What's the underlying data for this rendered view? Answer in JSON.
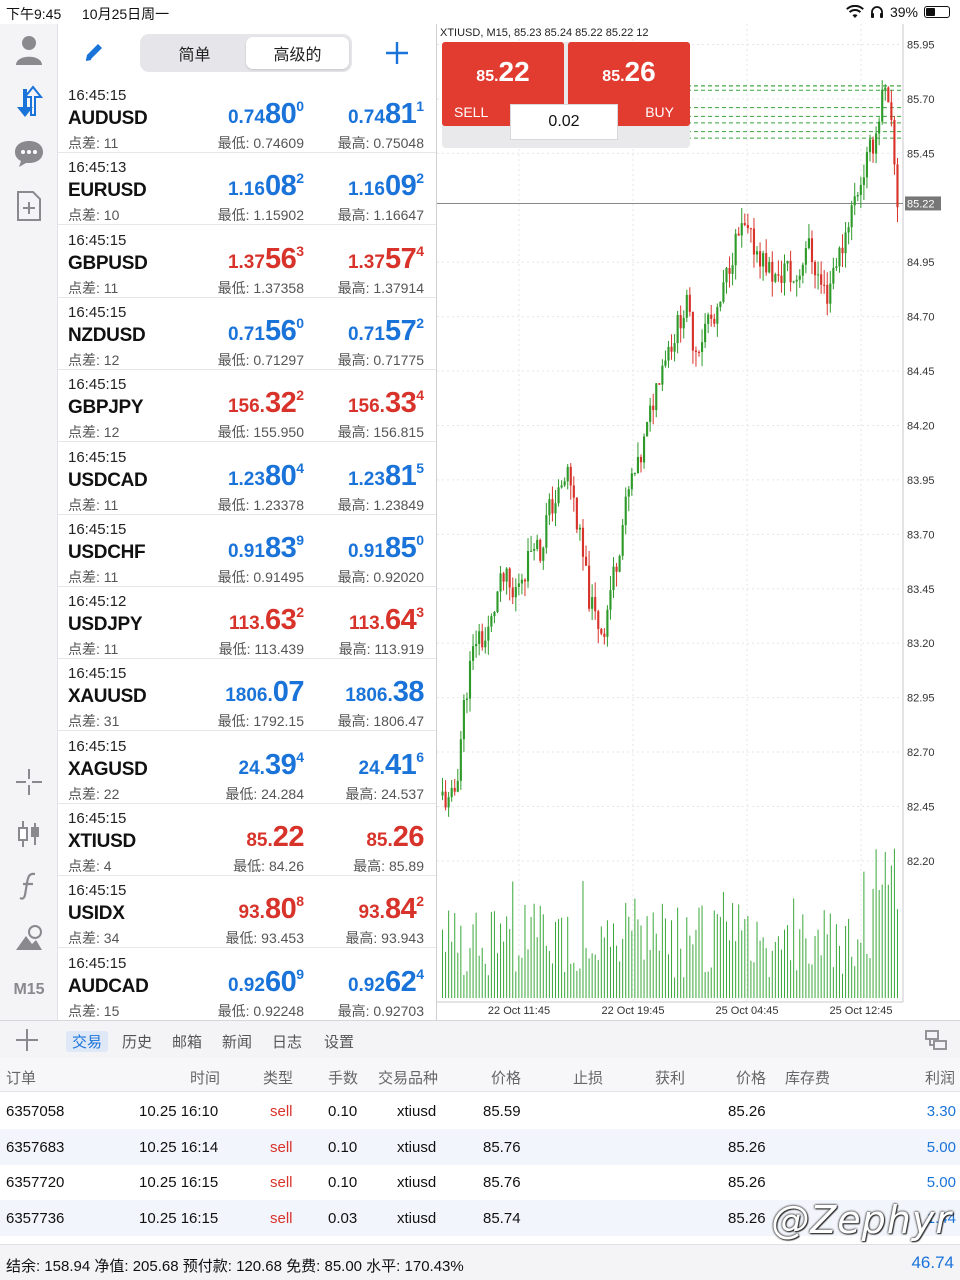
{
  "status_bar": {
    "time": "下午9:45",
    "date": "10月25日周一",
    "battery": "39%",
    "battery_level": 0.39
  },
  "quotes_header": {
    "tabs": [
      "简单",
      "高级的"
    ],
    "active_tab": 1
  },
  "quotes": [
    {
      "time": "16:45:15",
      "symbol": "AUDUSD",
      "spread": "点差: 11",
      "color": "blue",
      "bid": {
        "pre": "0.74",
        "big": "80",
        "sup": "0"
      },
      "ask": {
        "pre": "0.74",
        "big": "81",
        "sup": "1"
      },
      "low": "最低: 0.74609",
      "high": "最高: 0.75048"
    },
    {
      "time": "16:45:13",
      "symbol": "EURUSD",
      "spread": "点差: 10",
      "color": "blue",
      "bid": {
        "pre": "1.16",
        "big": "08",
        "sup": "2"
      },
      "ask": {
        "pre": "1.16",
        "big": "09",
        "sup": "2"
      },
      "low": "最低: 1.15902",
      "high": "最高: 1.16647"
    },
    {
      "time": "16:45:15",
      "symbol": "GBPUSD",
      "spread": "点差: 11",
      "color": "red",
      "bid": {
        "pre": "1.37",
        "big": "56",
        "sup": "3"
      },
      "ask": {
        "pre": "1.37",
        "big": "57",
        "sup": "4"
      },
      "low": "最低: 1.37358",
      "high": "最高: 1.37914"
    },
    {
      "time": "16:45:15",
      "symbol": "NZDUSD",
      "spread": "点差: 12",
      "color": "blue",
      "bid": {
        "pre": "0.71",
        "big": "56",
        "sup": "0"
      },
      "ask": {
        "pre": "0.71",
        "big": "57",
        "sup": "2"
      },
      "low": "最低: 0.71297",
      "high": "最高: 0.71775"
    },
    {
      "time": "16:45:15",
      "symbol": "GBPJPY",
      "spread": "点差: 12",
      "color": "red",
      "bid": {
        "pre": "156.",
        "big": "32",
        "sup": "2"
      },
      "ask": {
        "pre": "156.",
        "big": "33",
        "sup": "4"
      },
      "low": "最低: 155.950",
      "high": "最高: 156.815"
    },
    {
      "time": "16:45:15",
      "symbol": "USDCAD",
      "spread": "点差: 11",
      "color": "blue",
      "bid": {
        "pre": "1.23",
        "big": "80",
        "sup": "4"
      },
      "ask": {
        "pre": "1.23",
        "big": "81",
        "sup": "5"
      },
      "low": "最低: 1.23378",
      "high": "最高: 1.23849"
    },
    {
      "time": "16:45:15",
      "symbol": "USDCHF",
      "spread": "点差: 11",
      "color": "blue",
      "bid": {
        "pre": "0.91",
        "big": "83",
        "sup": "9"
      },
      "ask": {
        "pre": "0.91",
        "big": "85",
        "sup": "0"
      },
      "low": "最低: 0.91495",
      "high": "最高: 0.92020"
    },
    {
      "time": "16:45:12",
      "symbol": "USDJPY",
      "spread": "点差: 11",
      "color": "red",
      "bid": {
        "pre": "113.",
        "big": "63",
        "sup": "2"
      },
      "ask": {
        "pre": "113.",
        "big": "64",
        "sup": "3"
      },
      "low": "最低: 113.439",
      "high": "最高: 113.919"
    },
    {
      "time": "16:45:15",
      "symbol": "XAUUSD",
      "spread": "点差: 31",
      "color": "blue",
      "bid": {
        "pre": "1806.",
        "big": "07",
        "sup": ""
      },
      "ask": {
        "pre": "1806.",
        "big": "38",
        "sup": ""
      },
      "low": "最低: 1792.15",
      "high": "最高: 1806.47"
    },
    {
      "time": "16:45:15",
      "symbol": "XAGUSD",
      "spread": "点差: 22",
      "color": "blue",
      "bid": {
        "pre": "24.",
        "big": "39",
        "sup": "4"
      },
      "ask": {
        "pre": "24.",
        "big": "41",
        "sup": "6"
      },
      "low": "最低: 24.284",
      "high": "最高: 24.537"
    },
    {
      "time": "16:45:15",
      "symbol": "XTIUSD",
      "spread": "点差: 4",
      "color": "red",
      "bid": {
        "pre": "85.",
        "big": "22",
        "sup": ""
      },
      "ask": {
        "pre": "85.",
        "big": "26",
        "sup": ""
      },
      "low": "最低: 84.26",
      "high": "最高: 85.89"
    },
    {
      "time": "16:45:15",
      "symbol": "USIDX",
      "spread": "点差: 34",
      "color": "red",
      "bid": {
        "pre": "93.",
        "big": "80",
        "sup": "8"
      },
      "ask": {
        "pre": "93.",
        "big": "84",
        "sup": "2"
      },
      "low": "最低: 93.453",
      "high": "最高: 93.943"
    },
    {
      "time": "16:45:15",
      "symbol": "AUDCAD",
      "spread": "点差: 15",
      "color": "blue",
      "bid": {
        "pre": "0.92",
        "big": "60",
        "sup": "9"
      },
      "ask": {
        "pre": "0.92",
        "big": "62",
        "sup": "4"
      },
      "low": "最低: 0.92248",
      "high": "最高: 0.92703"
    }
  ],
  "toolbar": {
    "timeframe": "M15"
  },
  "chart": {
    "title": "XTIUSD, M15, 85.23 85.24 85.22 85.22 12",
    "sell": {
      "small": "85.",
      "large": "22",
      "label": "SELL"
    },
    "buy": {
      "small": "85.",
      "large": "26",
      "label": "BUY"
    },
    "volume": "0.02",
    "current_price_label": "85.22"
  },
  "chart_data": {
    "type": "candlestick",
    "title": "XTIUSD, M15, 85.23 85.24 85.22 85.22 12",
    "y_ticks": [
      "85.95",
      "85.70",
      "85.45",
      "85.22",
      "84.95",
      "84.70",
      "84.45",
      "84.20",
      "83.95",
      "83.70",
      "83.45",
      "83.20",
      "82.95",
      "82.70",
      "82.45",
      "82.20"
    ],
    "x_ticks": [
      "22 Oct 11:45",
      "22 Oct 19:45",
      "25 Oct 04:45",
      "25 Oct 12:45"
    ],
    "ylim": [
      82.25,
      85.98
    ],
    "current_price": 85.22,
    "order_levels": [
      85.59,
      85.76,
      85.76,
      85.74,
      85.66,
      85.62,
      85.55,
      85.52
    ],
    "grid": true,
    "close_path": [
      82.5,
      82.45,
      82.55,
      82.9,
      83.1,
      83.25,
      83.2,
      83.3,
      83.45,
      83.5,
      83.4,
      83.5,
      83.55,
      83.7,
      83.6,
      83.8,
      83.85,
      83.9,
      84.0,
      83.8,
      83.6,
      83.4,
      83.3,
      83.25,
      83.45,
      83.6,
      83.8,
      83.95,
      84.0,
      84.15,
      84.3,
      84.45,
      84.55,
      84.6,
      84.7,
      84.75,
      84.55,
      84.6,
      84.7,
      84.65,
      84.8,
      84.95,
      85.05,
      85.1,
      85.05,
      85.0,
      84.95,
      84.9,
      84.85,
      84.95,
      84.85,
      84.9,
      85.05,
      84.95,
      84.85,
      84.8,
      84.95,
      85.0,
      85.15,
      85.25,
      85.35,
      85.45,
      85.55,
      85.75,
      85.6,
      85.22
    ]
  },
  "terminal": {
    "tabs": [
      "交易",
      "历史",
      "邮箱",
      "新闻",
      "日志",
      "设置"
    ],
    "active_tab": 0,
    "columns": [
      "订单",
      "时间",
      "类型",
      "手数",
      "交易品种",
      "价格",
      "止损",
      "获利",
      "价格",
      "库存费",
      "利润"
    ],
    "orders": [
      {
        "id": "6357058",
        "time": "10.25 16:10",
        "type": "sell",
        "lots": "0.10",
        "symbol": "xtiusd",
        "open": "85.59",
        "sl": "",
        "tp": "",
        "price": "85.26",
        "swap": "",
        "profit": "3.30"
      },
      {
        "id": "6357683",
        "time": "10.25 16:14",
        "type": "sell",
        "lots": "0.10",
        "symbol": "xtiusd",
        "open": "85.76",
        "sl": "",
        "tp": "",
        "price": "85.26",
        "swap": "",
        "profit": "5.00"
      },
      {
        "id": "6357720",
        "time": "10.25 16:15",
        "type": "sell",
        "lots": "0.10",
        "symbol": "xtiusd",
        "open": "85.76",
        "sl": "",
        "tp": "",
        "price": "85.26",
        "swap": "",
        "profit": "5.00"
      },
      {
        "id": "6357736",
        "time": "10.25 16:15",
        "type": "sell",
        "lots": "0.03",
        "symbol": "xtiusd",
        "open": "85.74",
        "sl": "",
        "tp": "",
        "price": "85.26",
        "swap": "",
        "profit": "1.44"
      }
    ],
    "summary": "结余:  158.94  净值:  205.68  预付款:  120.68  免费:  85.00  水平:  170.43%",
    "total_profit": "46.74",
    "watermark": "@Zephyr"
  },
  "colors": {
    "accent": "#1a73d9",
    "down": "#d8332a",
    "up": "#2e9a2a",
    "sell_buy_bg": "#e23b30"
  }
}
